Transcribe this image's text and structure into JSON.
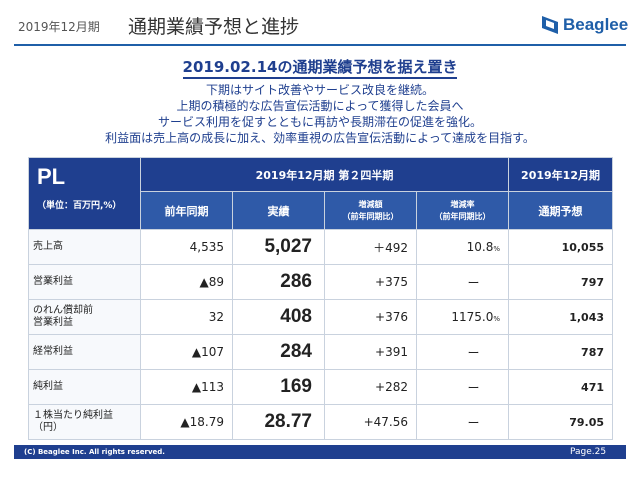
{
  "header": {
    "period": "2019年12月期",
    "title": "通期業績予想と進捗",
    "logo_text": "Beaglee"
  },
  "headline": "2019.02.14の通期業績予想を据え置き",
  "description": [
    "下期はサイト改善やサービス改良を継続。",
    "上期の積極的な広告宣伝活動によって獲得した会員へ",
    "サービス利用を促すとともに再訪や長期滞在の促進を強化。",
    "利益面は売上高の成長に加え、効率重視の広告宣伝活動によって達成を目指す。"
  ],
  "table": {
    "pl_label": "PL",
    "unit": "（単位：百万円,%）",
    "group_q2": "2019年12月期 第２四半期",
    "group_fy": "2019年12月期",
    "col_prev": "前年同期",
    "col_actual": "実績",
    "col_diff": "増減額",
    "col_diff_sub": "（前年同期比）",
    "col_rate": "増減率",
    "col_rate_sub": "（前年同期比）",
    "col_forecast": "通期予想",
    "rows": [
      {
        "label": "売上高",
        "label2": "",
        "prev": "4,535",
        "actual": "5,027",
        "diff": "＋492",
        "rate": "10.8",
        "rate_unit": "%",
        "forecast": "10,055"
      },
      {
        "label": "営業利益",
        "label2": "",
        "prev": "▲89",
        "actual": "286",
        "diff": "+375",
        "rate": "ー",
        "rate_unit": "",
        "forecast": "797"
      },
      {
        "label": "のれん償却前",
        "label2": "営業利益",
        "prev": "32",
        "actual": "408",
        "diff": "+376",
        "rate": "1175.0",
        "rate_unit": "%",
        "forecast": "1,043"
      },
      {
        "label": "経常利益",
        "label2": "",
        "prev": "▲107",
        "actual": "284",
        "diff": "+391",
        "rate": "ー",
        "rate_unit": "",
        "forecast": "787"
      },
      {
        "label": "純利益",
        "label2": "",
        "prev": "▲113",
        "actual": "169",
        "diff": "+282",
        "rate": "ー",
        "rate_unit": "",
        "forecast": "471"
      },
      {
        "label": "１株当たり純利益",
        "label2": "（円）",
        "prev": "▲18.79",
        "actual": "28.77",
        "diff": "+47.56",
        "rate": "ー",
        "rate_unit": "",
        "forecast": "79.05"
      }
    ]
  },
  "footer": {
    "copyright": "(C) Beaglee Inc. All rights reserved.",
    "page": "Page.25"
  },
  "colors": {
    "brand": "#1f5fa8",
    "header_dark": "#1f3f8f",
    "header_sub": "#2f5aa8"
  }
}
